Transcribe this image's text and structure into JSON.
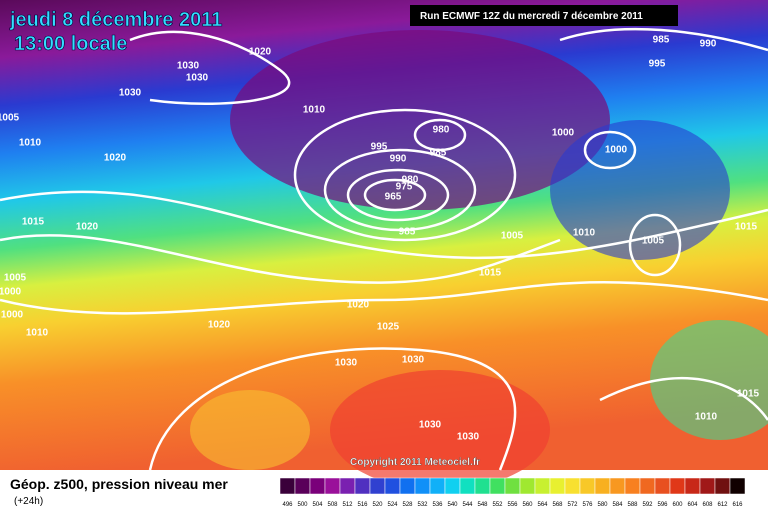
{
  "header": {
    "date": "jeudi 8 décembre 2011",
    "time": "13:00 locale",
    "run": "Run ECMWF 12Z du mercredi 7 décembre 2011"
  },
  "copyright": "Copyright 2011 Meteociel.fr",
  "legend": {
    "title": "Géop. z500, pression niveau mer",
    "lead": "(+24h)",
    "scale": [
      496,
      500,
      504,
      508,
      512,
      516,
      520,
      524,
      528,
      532,
      536,
      540,
      544,
      548,
      552,
      556,
      560,
      564,
      568,
      572,
      576,
      580,
      584,
      588,
      592,
      596,
      600,
      604,
      608,
      612,
      616
    ]
  },
  "isobar_labels": [
    "1020",
    "1030",
    "1030",
    "1030",
    "1005",
    "1010",
    "1020",
    "1010",
    "995",
    "990",
    "980",
    "985",
    "980",
    "975",
    "965",
    "985",
    "1005",
    "1010",
    "1015",
    "1000",
    "1000",
    "1005",
    "1015",
    "985",
    "990",
    "995",
    "1015",
    "1020",
    "1005",
    "1000",
    "1000",
    "1010",
    "1020",
    "1025",
    "1020",
    "1030",
    "1030",
    "1030",
    "1030",
    "1010",
    "1015"
  ]
}
